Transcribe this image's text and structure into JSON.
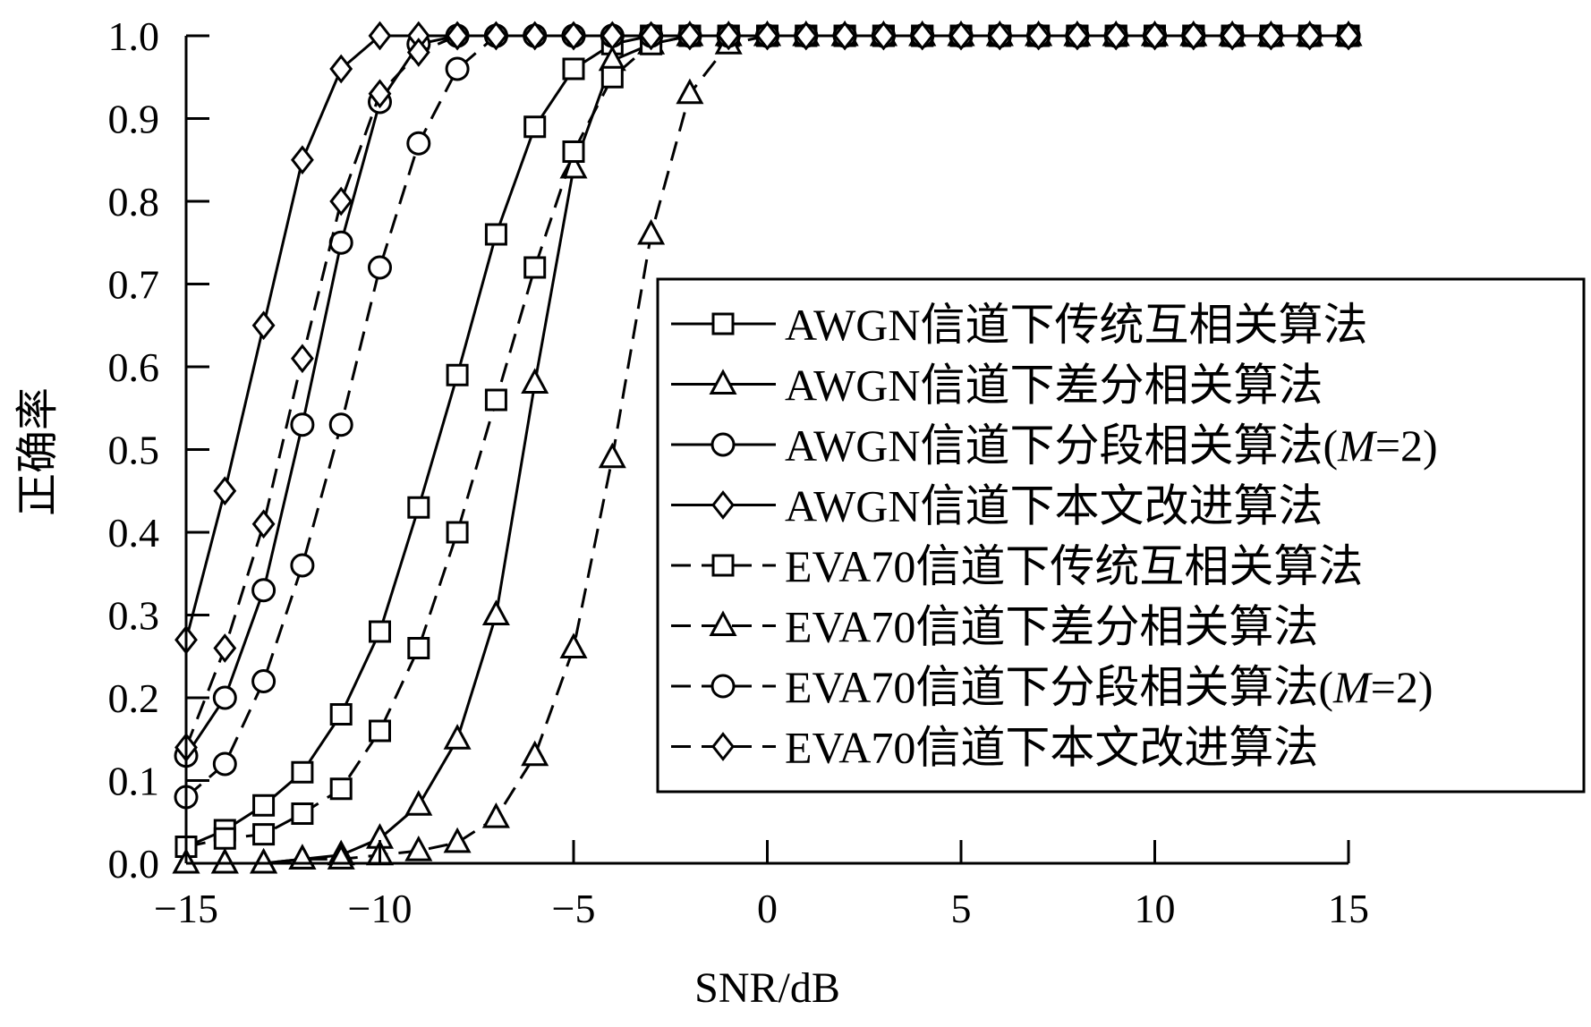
{
  "chart_data": {
    "type": "line",
    "xlabel": "SNR/dB",
    "ylabel": "正确率",
    "xlim": [
      -15,
      15
    ],
    "ylim": [
      0,
      1
    ],
    "xticks": [
      -15,
      -10,
      -5,
      0,
      5,
      10,
      15
    ],
    "xtick_labels": [
      "−15",
      "−10",
      "−5",
      "0",
      "5",
      "10",
      "15"
    ],
    "yticks": [
      0,
      0.1,
      0.2,
      0.3,
      0.4,
      0.5,
      0.6,
      0.7,
      0.8,
      0.9,
      1.0
    ],
    "ytick_labels": [
      "0.0",
      "0.1",
      "0.2",
      "0.3",
      "0.4",
      "0.5",
      "0.6",
      "0.7",
      "0.8",
      "0.9",
      "1.0"
    ],
    "grid": false,
    "legend_position": "right",
    "x": [
      -15,
      -14,
      -13,
      -12,
      -11,
      -10,
      -9,
      -8,
      -7,
      -6,
      -5,
      -4,
      -3,
      -2,
      -1,
      0,
      1,
      2,
      3,
      4,
      5,
      6,
      7,
      8,
      9,
      10,
      11,
      12,
      13,
      14,
      15
    ],
    "series": [
      {
        "name": "AWGN信道下传统互相关算法",
        "marker": "square",
        "dash": false,
        "values": [
          0.02,
          0.04,
          0.07,
          0.11,
          0.18,
          0.28,
          0.43,
          0.59,
          0.76,
          0.89,
          0.96,
          0.99,
          1,
          1,
          1,
          1,
          1,
          1,
          1,
          1,
          1,
          1,
          1,
          1,
          1,
          1,
          1,
          1,
          1,
          1,
          1
        ]
      },
      {
        "name": "AWGN信道下差分相关算法",
        "marker": "triangle",
        "dash": false,
        "values": [
          0.0,
          0.0,
          0.0,
          0.005,
          0.01,
          0.03,
          0.07,
          0.15,
          0.3,
          0.58,
          0.84,
          0.97,
          0.99,
          1,
          1,
          1,
          1,
          1,
          1,
          1,
          1,
          1,
          1,
          1,
          1,
          1,
          1,
          1,
          1,
          1,
          1
        ]
      },
      {
        "name": "AWGN信道下分段相关算法(",
        "name_italic": "M",
        "name_tail": "=2)",
        "marker": "circle",
        "dash": false,
        "values": [
          0.13,
          0.2,
          0.33,
          0.53,
          0.75,
          0.92,
          0.99,
          1,
          1,
          1,
          1,
          1,
          1,
          1,
          1,
          1,
          1,
          1,
          1,
          1,
          1,
          1,
          1,
          1,
          1,
          1,
          1,
          1,
          1,
          1,
          1
        ]
      },
      {
        "name": "AWGN信道下本文改进算法",
        "marker": "diamond",
        "dash": false,
        "values": [
          0.27,
          0.45,
          0.65,
          0.85,
          0.96,
          1,
          1,
          1,
          1,
          1,
          1,
          1,
          1,
          1,
          1,
          1,
          1,
          1,
          1,
          1,
          1,
          1,
          1,
          1,
          1,
          1,
          1,
          1,
          1,
          1,
          1
        ]
      },
      {
        "name": "EVA70信道下传统互相关算法",
        "marker": "square",
        "dash": true,
        "values": [
          0.02,
          0.03,
          0.035,
          0.06,
          0.09,
          0.16,
          0.26,
          0.4,
          0.56,
          0.72,
          0.86,
          0.95,
          0.99,
          1,
          1,
          1,
          1,
          1,
          1,
          1,
          1,
          1,
          1,
          1,
          1,
          1,
          1,
          1,
          1,
          1,
          1
        ]
      },
      {
        "name": "EVA70信道下差分相关算法",
        "marker": "triangle",
        "dash": true,
        "values": [
          0.0,
          0.0,
          0.0,
          0.005,
          0.005,
          0.01,
          0.015,
          0.025,
          0.055,
          0.13,
          0.26,
          0.49,
          0.76,
          0.93,
          0.99,
          1,
          1,
          1,
          1,
          1,
          1,
          1,
          1,
          1,
          1,
          1,
          1,
          1,
          1,
          1,
          1
        ]
      },
      {
        "name": "EVA70信道下分段相关算法(",
        "name_italic": "M",
        "name_tail": "=2)",
        "marker": "circle",
        "dash": true,
        "values": [
          0.08,
          0.12,
          0.22,
          0.36,
          0.53,
          0.72,
          0.87,
          0.96,
          1,
          1,
          1,
          1,
          1,
          1,
          1,
          1,
          1,
          1,
          1,
          1,
          1,
          1,
          1,
          1,
          1,
          1,
          1,
          1,
          1,
          1,
          1
        ]
      },
      {
        "name": "EVA70信道下本文改进算法",
        "marker": "diamond",
        "dash": true,
        "values": [
          0.14,
          0.26,
          0.41,
          0.61,
          0.8,
          0.93,
          0.98,
          1,
          1,
          1,
          1,
          1,
          1,
          1,
          1,
          1,
          1,
          1,
          1,
          1,
          1,
          1,
          1,
          1,
          1,
          1,
          1,
          1,
          1,
          1,
          1
        ]
      }
    ]
  }
}
